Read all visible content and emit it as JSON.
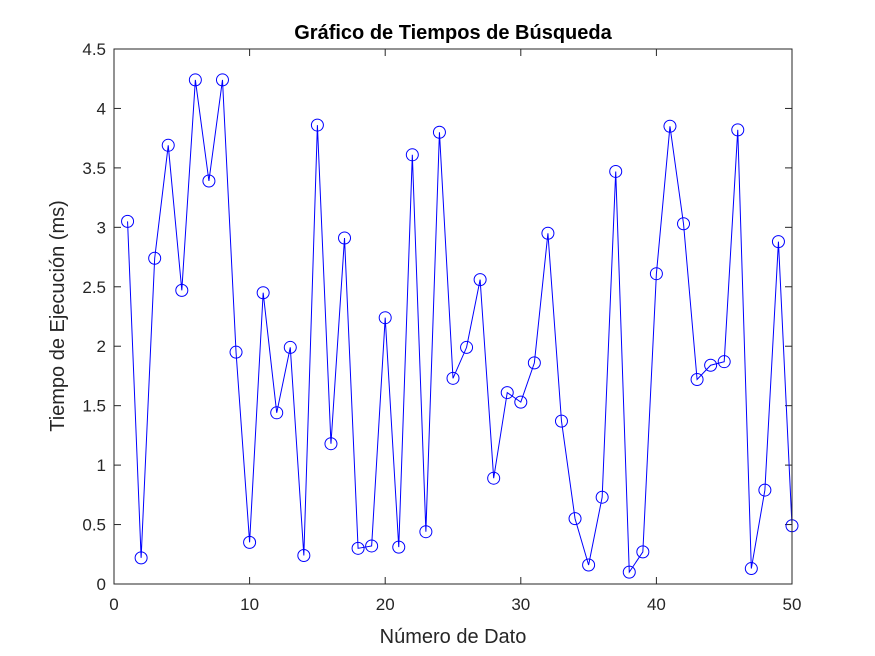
{
  "chart_data": {
    "type": "line",
    "title": "Gráfico de Tiempos de Búsqueda",
    "xlabel": "Número de Dato",
    "ylabel": "Tiempo de Ejecución (ms)",
    "xlim": [
      0,
      50
    ],
    "ylim": [
      0,
      4.5
    ],
    "xticks": [
      0,
      10,
      20,
      30,
      40,
      50
    ],
    "xtick_labels": [
      "0",
      "10",
      "20",
      "30",
      "40",
      "50"
    ],
    "yticks": [
      0,
      0.5,
      1,
      1.5,
      2,
      2.5,
      3,
      3.5,
      4,
      4.5
    ],
    "ytick_labels": [
      "0",
      "0.5",
      "1",
      "1.5",
      "2",
      "2.5",
      "3",
      "3.5",
      "4",
      "4.5"
    ],
    "grid": false,
    "marker": "circle",
    "series_color": "#0000ff",
    "series": [
      {
        "x": [
          1,
          2,
          3,
          4,
          5,
          6,
          7,
          8,
          9,
          10,
          11,
          12,
          13,
          14,
          15,
          16,
          17,
          18,
          19,
          20,
          21,
          22,
          23,
          24,
          25,
          26,
          27,
          28,
          29,
          30,
          31,
          32,
          33,
          34,
          35,
          36,
          37,
          38,
          39,
          40,
          41,
          42,
          43,
          44,
          45,
          46,
          47,
          48,
          49,
          50
        ],
        "values": [
          3.05,
          0.22,
          2.74,
          3.69,
          2.47,
          4.24,
          3.39,
          4.24,
          1.95,
          0.35,
          2.45,
          1.44,
          1.99,
          0.24,
          3.86,
          1.18,
          2.91,
          0.3,
          0.32,
          2.24,
          0.31,
          3.61,
          0.44,
          3.8,
          1.73,
          1.99,
          2.56,
          0.89,
          1.61,
          1.53,
          1.86,
          2.95,
          1.37,
          0.55,
          0.16,
          0.73,
          3.47,
          0.1,
          0.27,
          2.61,
          3.85,
          3.03,
          1.72,
          1.84,
          1.87,
          3.82,
          0.13,
          0.79,
          2.88,
          0.49
        ]
      }
    ]
  }
}
